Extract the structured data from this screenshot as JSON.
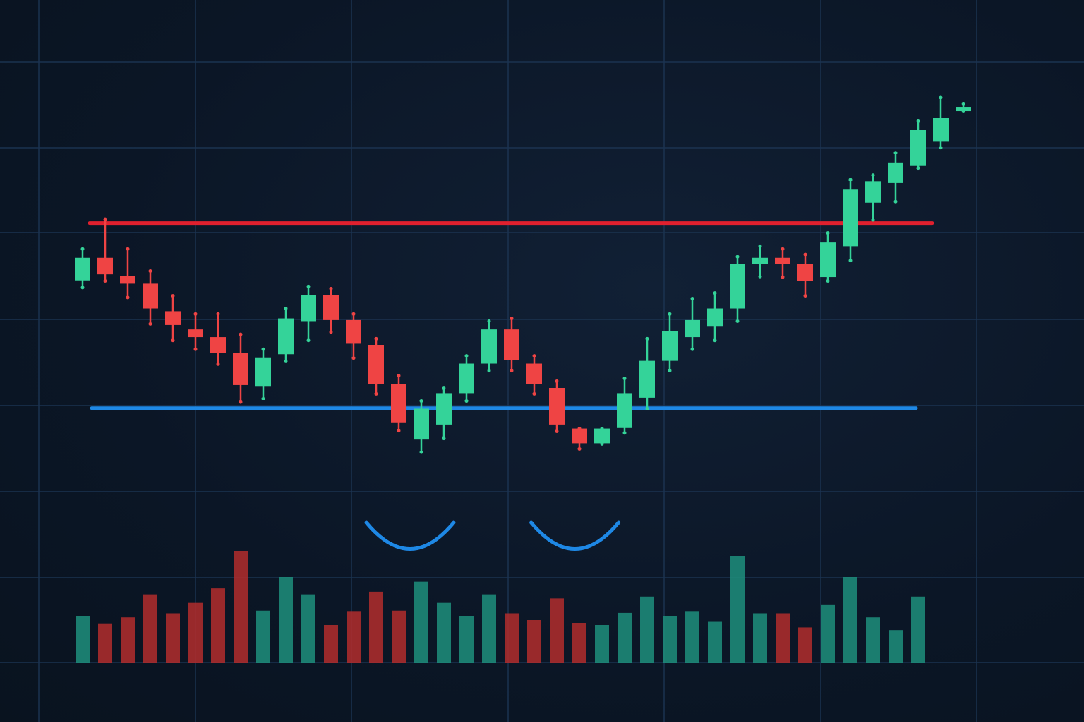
{
  "chart_data": {
    "type": "candlestick",
    "title": "",
    "xlabel": "",
    "ylabel": "",
    "grid": true,
    "background_color": "#0b1626",
    "grid_color": "#1b3350",
    "up_color": "#34d399",
    "down_color": "#ef4444",
    "volume_up_color": "#1f8f7c",
    "volume_down_color": "#b32d2d",
    "ylim": [
      0,
      100
    ],
    "volume_ylim": [
      0,
      100
    ],
    "resistance": {
      "value": 67.1,
      "color": "#e0202e",
      "x_start": 1,
      "x_end": 38.5
    },
    "support": {
      "value": 33.5,
      "color": "#1e88e5",
      "x_start": 1,
      "x_end": 37.5
    },
    "pattern_arcs": [
      {
        "center_index": 15.5,
        "color": "#1e88e5"
      },
      {
        "center_index": 22.8,
        "color": "#1e88e5"
      }
    ],
    "candles": [
      {
        "x": 1,
        "open": 56.7,
        "close": 60.8,
        "high": 62.4,
        "low": 55.4,
        "dir": "up"
      },
      {
        "x": 2,
        "open": 60.8,
        "close": 57.8,
        "high": 67.8,
        "low": 56.6,
        "dir": "down"
      },
      {
        "x": 3,
        "open": 57.5,
        "close": 56.1,
        "high": 62.4,
        "low": 53.6,
        "dir": "down"
      },
      {
        "x": 4,
        "open": 56.1,
        "close": 51.6,
        "high": 58.4,
        "low": 48.8,
        "dir": "down"
      },
      {
        "x": 5,
        "open": 51.1,
        "close": 48.6,
        "high": 53.9,
        "low": 45.8,
        "dir": "down"
      },
      {
        "x": 6,
        "open": 47.8,
        "close": 46.4,
        "high": 50.6,
        "low": 44.2,
        "dir": "down"
      },
      {
        "x": 7,
        "open": 46.4,
        "close": 43.5,
        "high": 50.6,
        "low": 41.5,
        "dir": "down"
      },
      {
        "x": 8,
        "open": 43.5,
        "close": 37.7,
        "high": 46.9,
        "low": 34.6,
        "dir": "down"
      },
      {
        "x": 9,
        "open": 37.4,
        "close": 42.6,
        "high": 44.2,
        "low": 35.2,
        "dir": "up"
      },
      {
        "x": 10,
        "open": 43.3,
        "close": 49.8,
        "high": 51.6,
        "low": 42.0,
        "dir": "up"
      },
      {
        "x": 11,
        "open": 49.3,
        "close": 54.0,
        "high": 55.6,
        "low": 45.8,
        "dir": "up"
      },
      {
        "x": 12,
        "open": 54.0,
        "close": 49.5,
        "high": 55.2,
        "low": 47.3,
        "dir": "down"
      },
      {
        "x": 13,
        "open": 49.5,
        "close": 45.2,
        "high": 50.6,
        "low": 42.6,
        "dir": "down"
      },
      {
        "x": 14,
        "open": 45.0,
        "close": 37.9,
        "high": 46.1,
        "low": 36.1,
        "dir": "down"
      },
      {
        "x": 15,
        "open": 37.9,
        "close": 30.8,
        "high": 39.4,
        "low": 29.4,
        "dir": "down"
      },
      {
        "x": 16,
        "open": 27.8,
        "close": 33.4,
        "high": 34.8,
        "low": 25.5,
        "dir": "up"
      },
      {
        "x": 17,
        "open": 30.4,
        "close": 36.1,
        "high": 37.1,
        "low": 28.0,
        "dir": "up"
      },
      {
        "x": 18,
        "open": 36.1,
        "close": 41.6,
        "high": 43.0,
        "low": 34.8,
        "dir": "up"
      },
      {
        "x": 19,
        "open": 41.6,
        "close": 47.8,
        "high": 49.3,
        "low": 40.3,
        "dir": "up"
      },
      {
        "x": 20,
        "open": 47.8,
        "close": 42.3,
        "high": 49.8,
        "low": 40.3,
        "dir": "down"
      },
      {
        "x": 21,
        "open": 41.6,
        "close": 37.9,
        "high": 43.0,
        "low": 36.1,
        "dir": "down"
      },
      {
        "x": 22,
        "open": 37.1,
        "close": 30.4,
        "high": 38.4,
        "low": 29.3,
        "dir": "down"
      },
      {
        "x": 23,
        "open": 29.8,
        "close": 27.0,
        "high": 29.8,
        "low": 26.1,
        "dir": "down"
      },
      {
        "x": 24,
        "open": 27.0,
        "close": 29.8,
        "high": 29.8,
        "low": 27.0,
        "dir": "up"
      },
      {
        "x": 25,
        "open": 29.9,
        "close": 36.1,
        "high": 38.9,
        "low": 29.0,
        "dir": "up"
      },
      {
        "x": 26,
        "open": 35.4,
        "close": 42.1,
        "high": 46.1,
        "low": 33.4,
        "dir": "up"
      },
      {
        "x": 27,
        "open": 42.1,
        "close": 47.5,
        "high": 50.6,
        "low": 40.3,
        "dir": "up"
      },
      {
        "x": 28,
        "open": 46.4,
        "close": 49.5,
        "high": 53.4,
        "low": 44.2,
        "dir": "up"
      },
      {
        "x": 29,
        "open": 48.3,
        "close": 51.6,
        "high": 54.4,
        "low": 45.8,
        "dir": "up"
      },
      {
        "x": 30,
        "open": 51.6,
        "close": 59.7,
        "high": 61.0,
        "low": 49.3,
        "dir": "up"
      },
      {
        "x": 31,
        "open": 59.7,
        "close": 60.8,
        "high": 62.9,
        "low": 57.4,
        "dir": "up"
      },
      {
        "x": 32,
        "open": 60.8,
        "close": 59.7,
        "high": 62.4,
        "low": 57.3,
        "dir": "down"
      },
      {
        "x": 33,
        "open": 59.7,
        "close": 56.6,
        "high": 61.4,
        "low": 53.9,
        "dir": "down"
      },
      {
        "x": 34,
        "open": 57.3,
        "close": 63.7,
        "high": 65.3,
        "low": 56.6,
        "dir": "up"
      },
      {
        "x": 35,
        "open": 62.9,
        "close": 73.3,
        "high": 75.0,
        "low": 60.3,
        "dir": "up"
      },
      {
        "x": 36,
        "open": 70.8,
        "close": 74.7,
        "high": 75.8,
        "low": 67.7,
        "dir": "up"
      },
      {
        "x": 37,
        "open": 74.5,
        "close": 78.1,
        "high": 79.9,
        "low": 71.0,
        "dir": "up"
      },
      {
        "x": 38,
        "open": 77.6,
        "close": 84.0,
        "high": 85.7,
        "low": 77.1,
        "dir": "up"
      },
      {
        "x": 39,
        "open": 82.0,
        "close": 86.2,
        "high": 90.0,
        "low": 80.8,
        "dir": "up"
      },
      {
        "x": 40,
        "open": 87.5,
        "close": 88.2,
        "high": 88.8,
        "low": 87.5,
        "dir": "up"
      }
    ],
    "volume": [
      {
        "x": 1,
        "value": 42,
        "dir": "up"
      },
      {
        "x": 2,
        "value": 35,
        "dir": "down"
      },
      {
        "x": 3,
        "value": 41,
        "dir": "down"
      },
      {
        "x": 4,
        "value": 61,
        "dir": "down"
      },
      {
        "x": 5,
        "value": 44,
        "dir": "down"
      },
      {
        "x": 6,
        "value": 54,
        "dir": "down"
      },
      {
        "x": 7,
        "value": 67,
        "dir": "down"
      },
      {
        "x": 8,
        "value": 100,
        "dir": "down"
      },
      {
        "x": 9,
        "value": 47,
        "dir": "up"
      },
      {
        "x": 10,
        "value": 77,
        "dir": "up"
      },
      {
        "x": 11,
        "value": 61,
        "dir": "up"
      },
      {
        "x": 12,
        "value": 34,
        "dir": "down"
      },
      {
        "x": 13,
        "value": 46,
        "dir": "down"
      },
      {
        "x": 14,
        "value": 64,
        "dir": "down"
      },
      {
        "x": 15,
        "value": 47,
        "dir": "down"
      },
      {
        "x": 16,
        "value": 73,
        "dir": "up"
      },
      {
        "x": 17,
        "value": 54,
        "dir": "up"
      },
      {
        "x": 18,
        "value": 42,
        "dir": "up"
      },
      {
        "x": 19,
        "value": 61,
        "dir": "up"
      },
      {
        "x": 20,
        "value": 44,
        "dir": "down"
      },
      {
        "x": 21,
        "value": 38,
        "dir": "down"
      },
      {
        "x": 22,
        "value": 58,
        "dir": "down"
      },
      {
        "x": 23,
        "value": 36,
        "dir": "down"
      },
      {
        "x": 24,
        "value": 34,
        "dir": "up"
      },
      {
        "x": 25,
        "value": 45,
        "dir": "up"
      },
      {
        "x": 26,
        "value": 59,
        "dir": "up"
      },
      {
        "x": 27,
        "value": 42,
        "dir": "up"
      },
      {
        "x": 28,
        "value": 46,
        "dir": "up"
      },
      {
        "x": 29,
        "value": 37,
        "dir": "up"
      },
      {
        "x": 30,
        "value": 96,
        "dir": "up"
      },
      {
        "x": 31,
        "value": 44,
        "dir": "up"
      },
      {
        "x": 32,
        "value": 44,
        "dir": "down"
      },
      {
        "x": 33,
        "value": 32,
        "dir": "down"
      },
      {
        "x": 34,
        "value": 52,
        "dir": "up"
      },
      {
        "x": 35,
        "value": 77,
        "dir": "up"
      },
      {
        "x": 36,
        "value": 41,
        "dir": "up"
      },
      {
        "x": 37,
        "value": 29,
        "dir": "up"
      },
      {
        "x": 38,
        "value": 59,
        "dir": "up"
      }
    ]
  }
}
